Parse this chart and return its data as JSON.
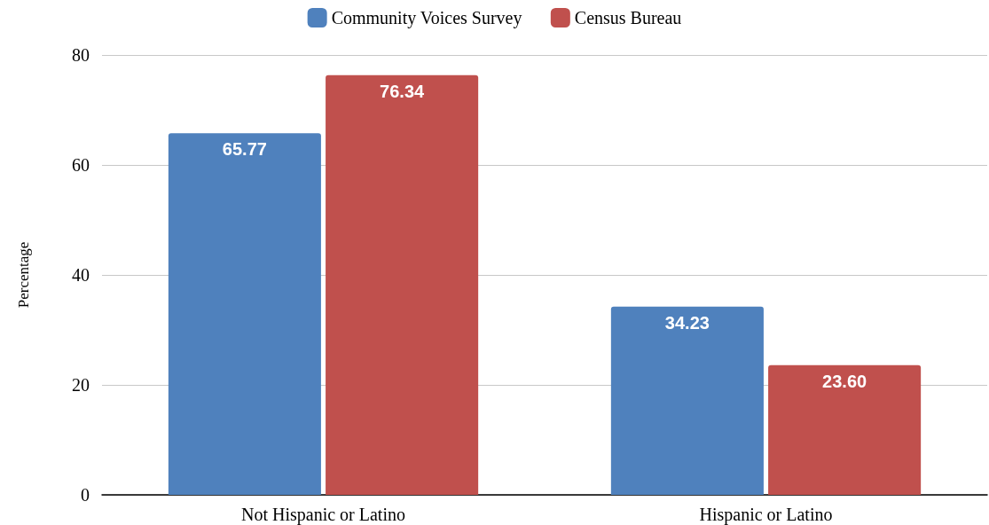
{
  "chart_data": {
    "type": "bar",
    "ylabel": "Percentage",
    "categories": [
      "Not Hispanic or Latino",
      "Hispanic or Latino"
    ],
    "series": [
      {
        "name": "Community Voices Survey",
        "color": "#4f81bd",
        "values": [
          65.77,
          34.23
        ],
        "value_labels": [
          "65.77",
          "34.23"
        ]
      },
      {
        "name": "Census Bureau",
        "color": "#c0504d",
        "values": [
          76.34,
          23.6
        ],
        "value_labels": [
          "76.34",
          "23.60"
        ]
      }
    ],
    "ylim": [
      0,
      80
    ],
    "yticks": [
      0,
      20,
      40,
      60,
      80
    ],
    "grid": "y",
    "legend": "top"
  }
}
